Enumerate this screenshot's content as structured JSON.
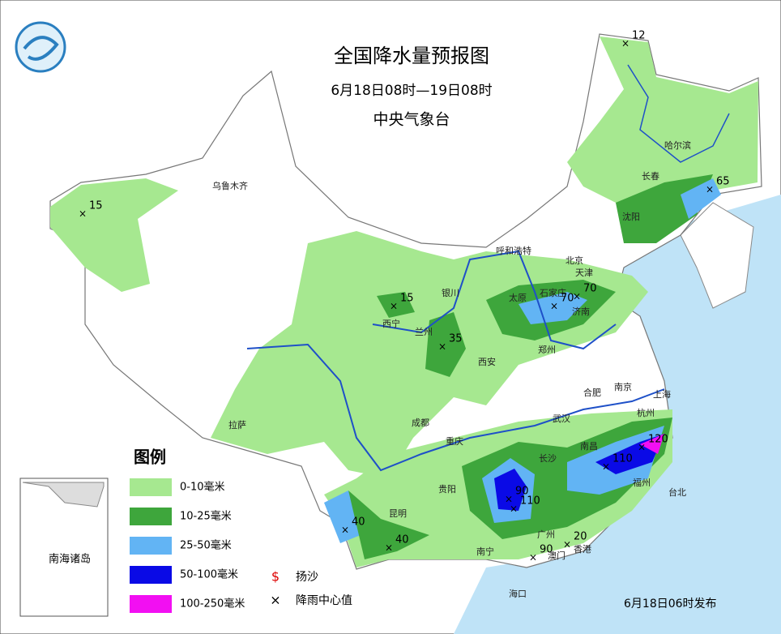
{
  "header": {
    "title": "全国降水量预报图",
    "period": "6月18日08时—19日08时",
    "issuer": "中央气象台"
  },
  "cities": [
    "乌鲁木齐",
    "哈尔滨",
    "长春",
    "沈阳",
    "呼和浩特",
    "北京",
    "天津",
    "石家庄",
    "太原",
    "济南",
    "西宁",
    "兰州",
    "银川",
    "郑州",
    "西安",
    "合肥",
    "南京",
    "上海",
    "杭州",
    "拉萨",
    "成都",
    "武汉",
    "重庆",
    "长沙",
    "南昌",
    "贵阳",
    "福州",
    "台北",
    "昆明",
    "南宁",
    "广州",
    "澳门",
    "香港",
    "海口"
  ],
  "centers": [
    12,
    15,
    65,
    15,
    35,
    70,
    70,
    40,
    40,
    90,
    110,
    110,
    120,
    20,
    90
  ],
  "legend": {
    "title": "图例",
    "items": [
      {
        "label": "0-10毫米",
        "color": "#a6e890"
      },
      {
        "label": "10-25毫米",
        "color": "#3ea63c"
      },
      {
        "label": "25-50毫米",
        "color": "#62b4f4"
      },
      {
        "label": "50-100毫米",
        "color": "#0a0ae6"
      },
      {
        "label": "100-250毫米",
        "color": "#f20ff2"
      }
    ],
    "symbols": [
      "扬沙",
      "降雨中心值"
    ]
  },
  "inset_label": "南海诸岛",
  "issue_time": "6月18日06时发布"
}
